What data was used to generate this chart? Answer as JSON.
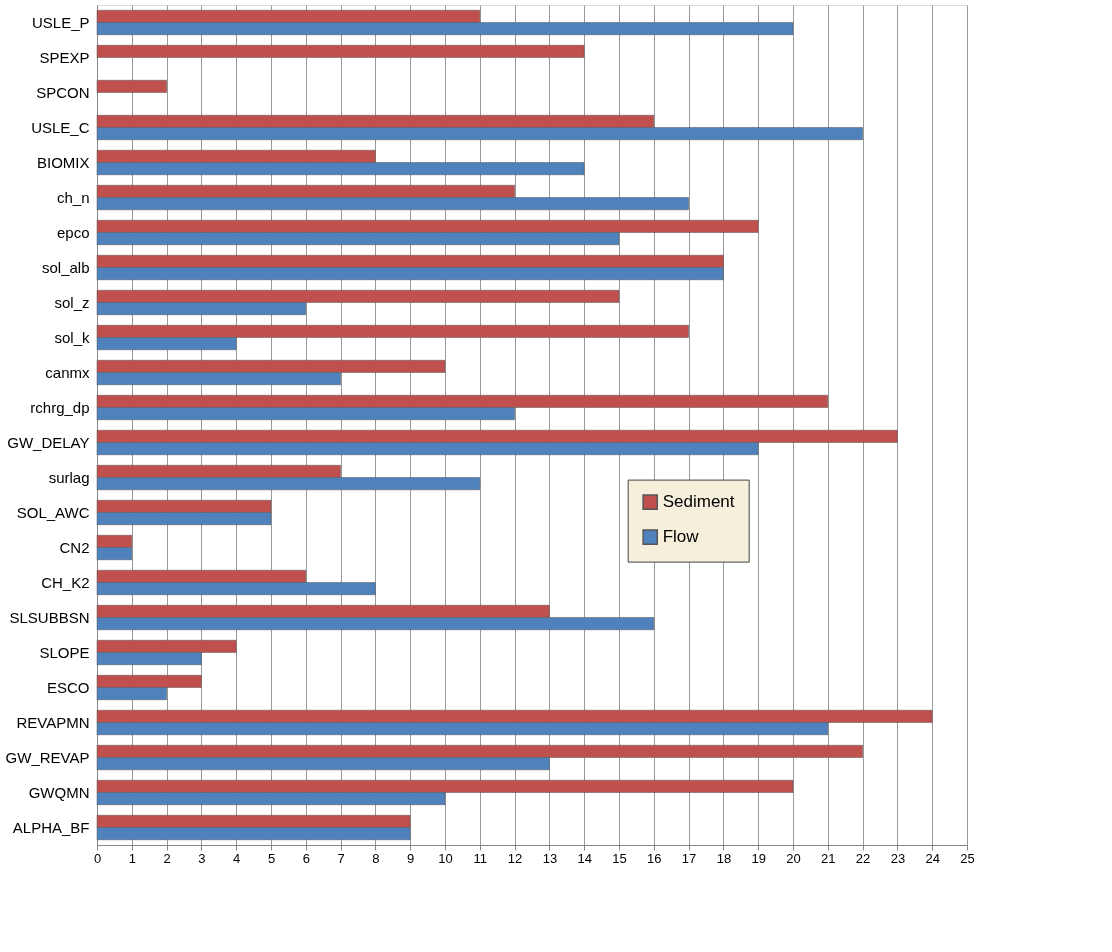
{
  "chart_data": {
    "type": "bar",
    "orientation": "horizontal",
    "categories": [
      "USLE_P",
      "SPEXP",
      "SPCON",
      "USLE_C",
      "BIOMIX",
      "ch_n",
      "epco",
      "sol_alb",
      "sol_z",
      "sol_k",
      "canmx",
      "rchrg_dp",
      "GW_DELAY",
      "surlag",
      "SOL_AWC",
      "CN2",
      "CH_K2",
      "SLSUBBSN",
      "SLOPE",
      "ESCO",
      "REVAPMN",
      "GW_REVAP",
      "GWQMN",
      "ALPHA_BF"
    ],
    "series": [
      {
        "name": "Sediment",
        "color": "#c0504d",
        "values": [
          11,
          14,
          2,
          16,
          8,
          12,
          19,
          18,
          15,
          17,
          10,
          21,
          23,
          7,
          5,
          1,
          6,
          13,
          4,
          3,
          24,
          22,
          20,
          9
        ]
      },
      {
        "name": "Flow",
        "color": "#4f81bd",
        "values": [
          20,
          null,
          null,
          22,
          14,
          17,
          15,
          18,
          6,
          4,
          7,
          12,
          19,
          11,
          5,
          1,
          8,
          16,
          3,
          2,
          21,
          13,
          10,
          9
        ]
      }
    ],
    "xlim": [
      0,
      25
    ],
    "xticks": [
      0,
      1,
      2,
      3,
      4,
      5,
      6,
      7,
      8,
      9,
      10,
      11,
      12,
      13,
      14,
      15,
      16,
      17,
      18,
      19,
      20,
      21,
      22,
      23,
      24,
      25
    ],
    "grid": "x",
    "legend": "right"
  }
}
